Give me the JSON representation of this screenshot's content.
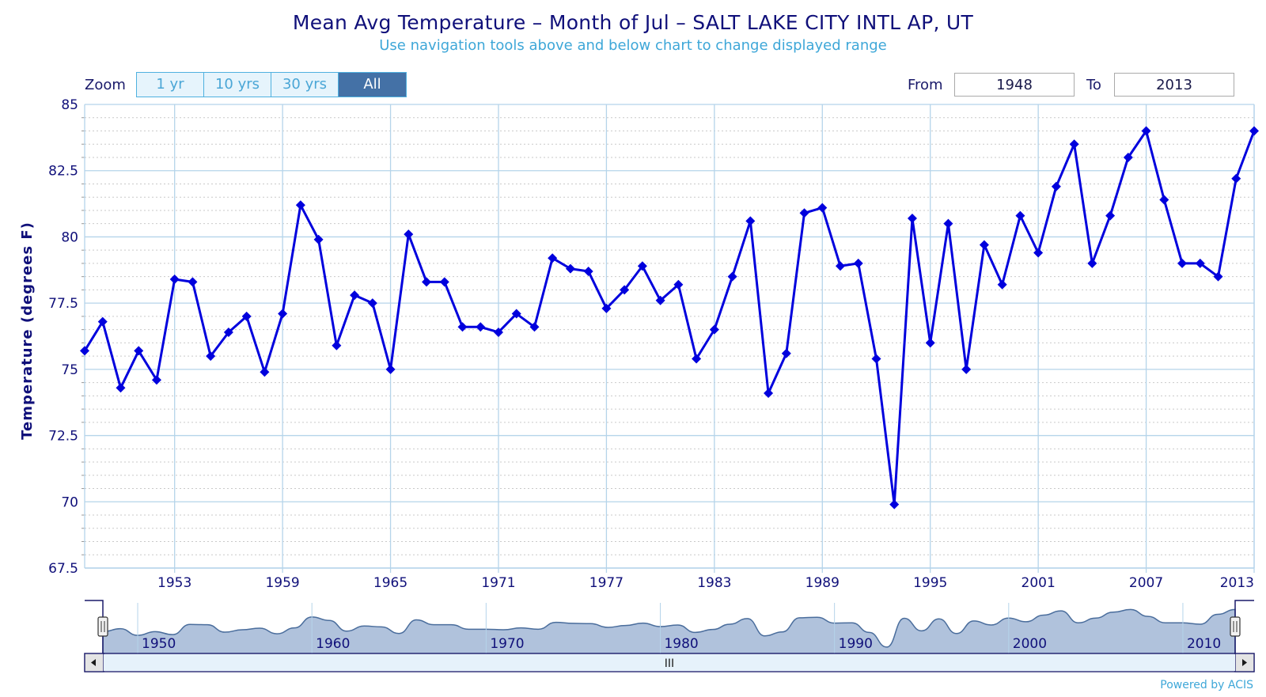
{
  "header": {
    "title": "Mean Avg Temperature – Month of Jul – SALT LAKE CITY INTL AP, UT",
    "subtitle": "Use navigation tools above and below chart to change displayed range"
  },
  "zoom": {
    "label": "Zoom",
    "buttons": [
      "1 yr",
      "10 yrs",
      "30 yrs",
      "All"
    ],
    "active": "All"
  },
  "range": {
    "from_label": "From",
    "from_value": "1948",
    "to_label": "To",
    "to_value": "2013"
  },
  "credit": "Powered by ACIS",
  "navigator": {
    "labels": [
      "1950",
      "1960",
      "1970",
      "1980",
      "1990",
      "2000",
      "2010"
    ],
    "scroll_grip": "III"
  },
  "colors": {
    "series": "#0000dd",
    "title": "#10107a",
    "subtitle": "#3ea7d8",
    "grid": "#b5d4ea",
    "navigator_fill": "#b0c2dc",
    "navigator_line": "#4a6d9c",
    "active_button": "#4471a6"
  },
  "chart_data": {
    "type": "line",
    "title": "Mean Avg Temperature – Month of Jul – SALT LAKE CITY INTL AP, UT",
    "xlabel": "",
    "ylabel": "Temperature (degrees F)",
    "xlim": [
      1948,
      2013
    ],
    "ylim": [
      67.5,
      85
    ],
    "yticks": [
      67.5,
      70,
      72.5,
      75,
      77.5,
      80,
      82.5,
      85
    ],
    "ytick_labels": [
      "67.5",
      "70",
      "72.5",
      "75",
      "77.5",
      "80",
      "82.5",
      "85"
    ],
    "xticks": [
      1953,
      1959,
      1965,
      1971,
      1977,
      1983,
      1989,
      1995,
      2001,
      2007,
      2013
    ],
    "xtick_labels": [
      "1953",
      "1959",
      "1965",
      "1971",
      "1977",
      "1983",
      "1989",
      "1995",
      "2001",
      "2007",
      "2013"
    ],
    "marker": "diamond",
    "series": [
      {
        "name": "Mean Avg Temperature",
        "x": [
          1948,
          1949,
          1950,
          1951,
          1952,
          1953,
          1954,
          1955,
          1956,
          1957,
          1958,
          1959,
          1960,
          1961,
          1962,
          1963,
          1964,
          1965,
          1966,
          1967,
          1968,
          1969,
          1970,
          1971,
          1972,
          1973,
          1974,
          1975,
          1976,
          1977,
          1978,
          1979,
          1980,
          1981,
          1982,
          1983,
          1984,
          1985,
          1986,
          1987,
          1988,
          1989,
          1990,
          1991,
          1992,
          1993,
          1994,
          1995,
          1996,
          1997,
          1998,
          1999,
          2000,
          2001,
          2002,
          2003,
          2004,
          2005,
          2006,
          2007,
          2008,
          2009,
          2010,
          2011,
          2012,
          2013
        ],
        "values": [
          75.7,
          76.8,
          74.3,
          75.7,
          74.6,
          78.4,
          78.3,
          75.5,
          76.4,
          77.0,
          74.9,
          77.1,
          81.2,
          79.9,
          75.9,
          77.8,
          77.5,
          75.0,
          80.1,
          78.3,
          78.3,
          76.6,
          76.6,
          76.4,
          77.1,
          76.6,
          79.2,
          78.8,
          78.7,
          77.3,
          78.0,
          78.9,
          77.6,
          78.2,
          75.4,
          76.5,
          78.5,
          80.6,
          74.1,
          75.6,
          80.9,
          81.1,
          78.9,
          79.0,
          75.4,
          69.9,
          80.7,
          76.0,
          80.5,
          75.0,
          79.7,
          78.2,
          80.8,
          79.4,
          81.9,
          83.5,
          79.0,
          80.8,
          83.0,
          84.0,
          81.4,
          79.0,
          79.0,
          78.5,
          82.2,
          84.0
        ]
      }
    ]
  }
}
